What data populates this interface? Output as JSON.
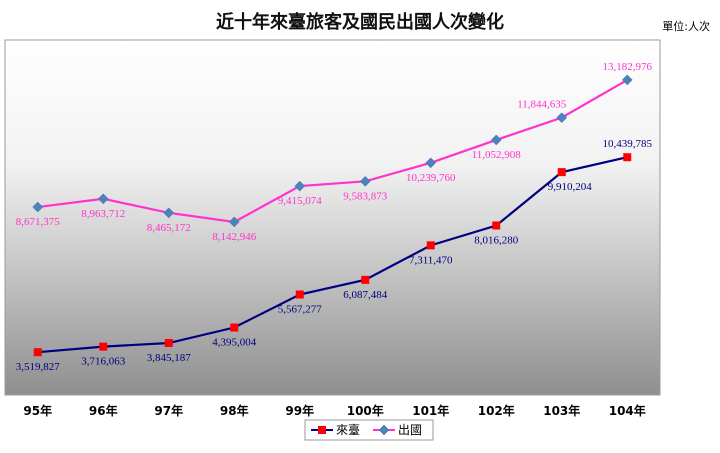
{
  "chart_data": {
    "type": "line",
    "title": "近十年來臺旅客及國民出國人次變化",
    "unit_note": "單位:人次",
    "categories": [
      "95年",
      "96年",
      "97年",
      "98年",
      "99年",
      "100年",
      "101年",
      "102年",
      "103年",
      "104年"
    ],
    "series": [
      {
        "name": "來臺",
        "color": "#000080",
        "marker_color": "#ff0000",
        "marker": "square",
        "values": [
          3519827,
          3716063,
          3845187,
          4395004,
          5567277,
          6087484,
          7311470,
          8016280,
          9910204,
          10439785
        ],
        "labels": [
          "3,519,827",
          "3,716,063",
          "3,845,187",
          "4,395,004",
          "5,567,277",
          "6,087,484",
          "7,311,470",
          "8,016,280",
          "9,910,204",
          "10,439,785"
        ]
      },
      {
        "name": "出國",
        "color": "#ff33cc",
        "marker_color": "#4f81bd",
        "marker": "diamond",
        "values": [
          8671375,
          8963712,
          8465172,
          8142946,
          9415074,
          9583873,
          10239760,
          11052908,
          11844635,
          13182976
        ],
        "labels": [
          "8,671,375",
          "8,963,712",
          "8,465,172",
          "8,142,946",
          "9,415,074",
          "9,583,873",
          "10,239,760",
          "11,052,908",
          "11,844,635",
          "13,182,976"
        ]
      }
    ],
    "ylim": [
      2000000,
      14600000
    ],
    "grid": false,
    "legend": "bottom-center",
    "background": "gradient-white-to-gray"
  }
}
